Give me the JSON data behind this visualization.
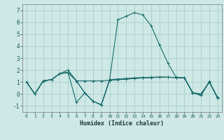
{
  "xlabel": "Humidex (Indice chaleur)",
  "xlim": [
    -0.5,
    23.5
  ],
  "ylim": [
    -1.5,
    7.5
  ],
  "yticks": [
    -1,
    0,
    1,
    2,
    3,
    4,
    5,
    6,
    7
  ],
  "xticks": [
    0,
    1,
    2,
    3,
    4,
    5,
    6,
    7,
    8,
    9,
    10,
    11,
    12,
    13,
    14,
    15,
    16,
    17,
    18,
    19,
    20,
    21,
    22,
    23
  ],
  "background_color": "#cde8e5",
  "grid_color": "#aacfcc",
  "line_color": "#1a6b6b",
  "series": [
    {
      "x": [
        0,
        1,
        2,
        3,
        4,
        5,
        6,
        7,
        8,
        9,
        10,
        11,
        12,
        13,
        14,
        15,
        16,
        17,
        18,
        19,
        20,
        21,
        22,
        23
      ],
      "y": [
        1.0,
        0.0,
        1.1,
        1.2,
        1.7,
        1.8,
        1.1,
        1.1,
        1.1,
        1.1,
        1.15,
        1.2,
        1.25,
        1.3,
        1.35,
        1.38,
        1.4,
        1.4,
        1.38,
        1.35,
        0.1,
        0.0,
        1.0,
        -0.3
      ]
    },
    {
      "x": [
        0,
        1,
        2,
        3,
        4,
        5,
        6,
        7,
        8,
        9,
        10,
        11,
        12,
        13,
        14,
        15,
        16,
        17,
        18,
        19,
        20,
        21,
        22,
        23
      ],
      "y": [
        1.0,
        0.0,
        1.1,
        1.2,
        1.7,
        1.8,
        1.1,
        0.1,
        -0.6,
        -0.9,
        1.15,
        1.2,
        1.25,
        1.3,
        1.35,
        1.38,
        1.4,
        1.4,
        1.38,
        1.35,
        0.1,
        0.0,
        1.0,
        -0.3
      ]
    },
    {
      "x": [
        0,
        1,
        2,
        3,
        4,
        5,
        6,
        7,
        8,
        9,
        10,
        11,
        12,
        13,
        14,
        15,
        16,
        17,
        18,
        19,
        20,
        21,
        22,
        23
      ],
      "y": [
        1.0,
        0.0,
        1.1,
        1.2,
        1.7,
        2.0,
        1.1,
        0.1,
        -0.6,
        -0.9,
        1.2,
        1.25,
        1.3,
        1.35,
        1.38,
        1.4,
        1.42,
        1.4,
        1.38,
        1.35,
        0.12,
        -0.12,
        1.05,
        -0.32
      ]
    },
    {
      "x": [
        0,
        1,
        2,
        3,
        4,
        5,
        6,
        7,
        8,
        9,
        10,
        11,
        12,
        13,
        14,
        15,
        16,
        17,
        18,
        19,
        20,
        21,
        22,
        23
      ],
      "y": [
        1.0,
        0.0,
        1.1,
        1.2,
        1.7,
        1.8,
        -0.7,
        0.1,
        -0.6,
        -0.9,
        1.2,
        6.2,
        6.5,
        6.8,
        6.6,
        5.7,
        4.1,
        2.6,
        1.4,
        1.35,
        0.1,
        -0.1,
        1.0,
        -0.35
      ]
    }
  ]
}
